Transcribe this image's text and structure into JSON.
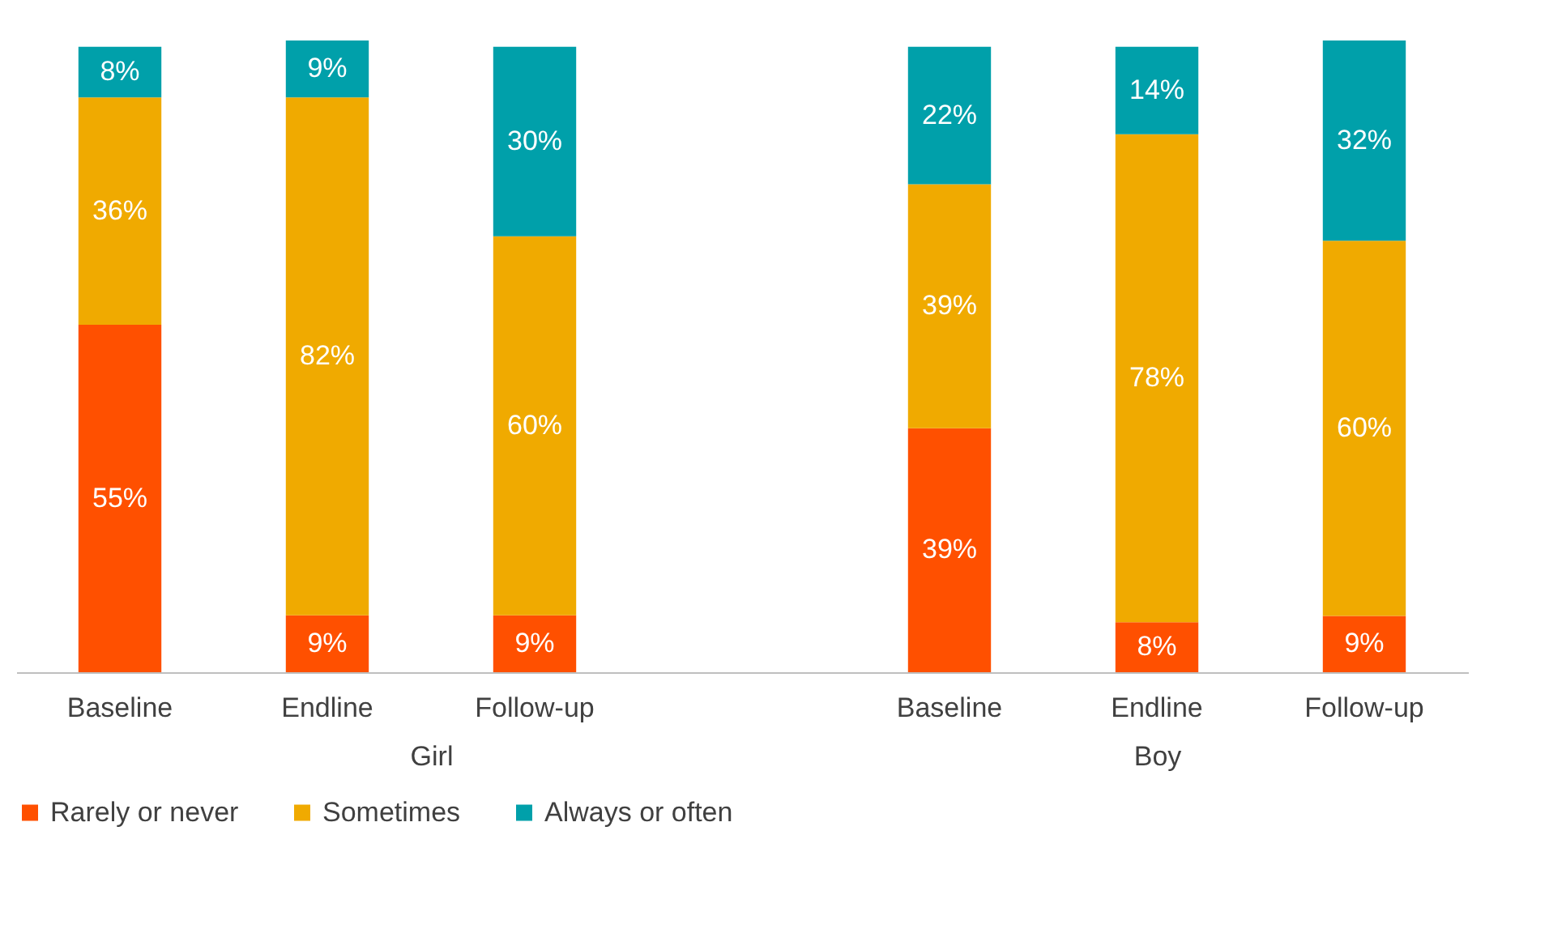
{
  "chart_data": [
    {
      "type": "bar",
      "stacked": true,
      "xlabel": "Girl",
      "categories": [
        "Baseline",
        "Endline",
        "Follow-up",
        null
      ],
      "tick_labels": "x",
      "legend": "bottom",
      "series": [
        {
          "name": "Rarely or never",
          "color": "#ff5000",
          "values": [
            55,
            9,
            9,
            null
          ],
          "value_labels": [
            "55%",
            "9%",
            "9%",
            null
          ]
        },
        {
          "name": "Sometimes",
          "color": "#f0aa00",
          "values": [
            36,
            82,
            60,
            null
          ],
          "value_labels": [
            "36%",
            "82%",
            "60%",
            null
          ]
        },
        {
          "name": "Always or often",
          "color": "#00a0aa",
          "values": [
            8,
            9,
            30,
            null
          ],
          "value_labels": [
            "8%",
            "9%",
            "30%",
            null
          ]
        }
      ]
    },
    {
      "type": "bar",
      "stacked": true,
      "xlabel": "Boy",
      "categories": [
        "Baseline",
        "Endline",
        "Follow-up"
      ],
      "tick_labels": "x",
      "legend": "bottom",
      "series": [
        {
          "name": "Rarely or never",
          "color": "#ff5000",
          "values": [
            39,
            8,
            9
          ],
          "value_labels": [
            "39%",
            "8%",
            "9%"
          ]
        },
        {
          "name": "Sometimes",
          "color": "#f0aa00",
          "values": [
            39,
            78,
            60
          ],
          "value_labels": [
            "39%",
            "78%",
            "60%"
          ]
        },
        {
          "name": "Always or often",
          "color": "#00a0aa",
          "values": [
            22,
            14,
            32
          ],
          "value_labels": [
            "22%",
            "14%",
            "32%"
          ]
        }
      ]
    }
  ]
}
